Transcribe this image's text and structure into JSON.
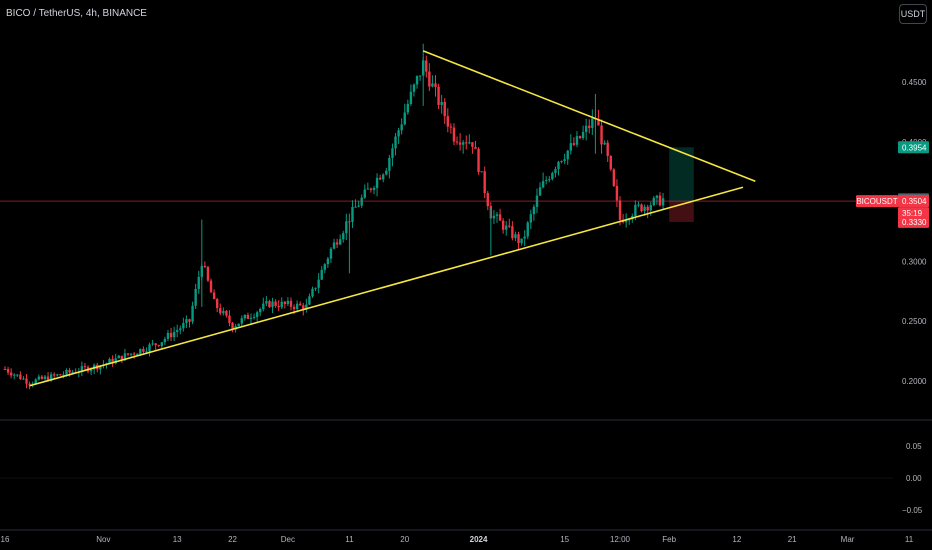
{
  "header": {
    "title": "BICO / TetherUS, 4h, BINANCE",
    "currency_button": "USDT"
  },
  "colors": {
    "background": "#000000",
    "up": "#089981",
    "down": "#f23645",
    "trendline": "#f5e642",
    "axis_text": "#b2b5be",
    "separator": "#2a2e39"
  },
  "chart_data": [
    {
      "type": "candlestick",
      "symbol": "BICOUSDT",
      "interval": "4h",
      "exchange": "BINANCE",
      "y_scale": "linear",
      "ylim": [
        0.177,
        0.5
      ],
      "y_ticks": [
        "0.4500",
        "0.4000",
        "0.3500",
        "0.3000",
        "0.2500",
        "0.2000"
      ],
      "x_ticks": [
        "16",
        "Nov",
        "13",
        "22",
        "Dec",
        "11",
        "20",
        "2024",
        "15",
        "12:00",
        "Feb",
        "12",
        "21",
        "Mar",
        "11"
      ],
      "x_ticks_bold": [
        "2024"
      ],
      "anchors": [
        {
          "label": "Oct 16",
          "value": 0.21
        },
        {
          "label": "Oct 20",
          "value": 0.199
        },
        {
          "label": "Nov 1",
          "value": 0.214
        },
        {
          "label": "Nov 10",
          "value": 0.232
        },
        {
          "label": "Nov 15",
          "value": 0.25
        },
        {
          "label": "Nov 17",
          "value": 0.3
        },
        {
          "label": "Nov 19",
          "value": 0.265
        },
        {
          "label": "Nov 22",
          "value": 0.246
        },
        {
          "label": "Nov 28",
          "value": 0.265
        },
        {
          "label": "Dec 4",
          "value": 0.262
        },
        {
          "label": "Dec 8",
          "value": 0.31
        },
        {
          "label": "Dec 12",
          "value": 0.345
        },
        {
          "label": "Dec 17",
          "value": 0.38
        },
        {
          "label": "Dec 20",
          "value": 0.425
        },
        {
          "label": "Dec 23",
          "value": 0.465
        },
        {
          "label": "Dec 25",
          "value": 0.44
        },
        {
          "label": "Dec 28",
          "value": 0.405
        },
        {
          "label": "Dec 31",
          "value": 0.4
        },
        {
          "label": "Jan 3",
          "value": 0.34
        },
        {
          "label": "Jan 6",
          "value": 0.325
        },
        {
          "label": "Jan 8",
          "value": 0.315
        },
        {
          "label": "Jan 11",
          "value": 0.36
        },
        {
          "label": "Jan 14",
          "value": 0.385
        },
        {
          "label": "Jan 17",
          "value": 0.4
        },
        {
          "label": "Jan 20",
          "value": 0.42
        },
        {
          "label": "Jan 22",
          "value": 0.385
        },
        {
          "label": "Jan 24",
          "value": 0.335
        },
        {
          "label": "Jan 27",
          "value": 0.345
        },
        {
          "label": "Jan 31",
          "value": 0.352
        }
      ],
      "trendlines": [
        {
          "name": "",
          "start": {
            "date": "Oct 20",
            "value": 0.196
          },
          "end": {
            "date": "Feb 13",
            "value": 0.362
          }
        },
        {
          "name": "",
          "start": {
            "date": "Dec 23",
            "value": 0.476
          },
          "end": {
            "date": "Feb 15",
            "value": 0.367
          }
        }
      ],
      "position": {
        "entry": 0.3504,
        "target": 0.3954,
        "stop": 0.333
      },
      "price_badges": [
        {
          "text": "0.3954",
          "value": 0.3954,
          "color": "#089981"
        },
        {
          "text": "0.3519",
          "value": 0.3519,
          "color": "#5d606b"
        },
        {
          "text": "BICOUSDT",
          "value": 0.3504,
          "color": "#f23645",
          "side": "left"
        },
        {
          "text": "0.3504",
          "value": 0.3504,
          "color": "#f23645"
        },
        {
          "text": "35:19",
          "value": 0.3504,
          "color": "#f23645",
          "offset": 1
        },
        {
          "text": "0.3330",
          "value": 0.333,
          "color": "#f23645"
        }
      ]
    },
    {
      "type": "line",
      "name": "",
      "ylim": [
        -0.07,
        0.07
      ],
      "y_ticks": [
        "0.05",
        "0.00",
        "−0.05"
      ],
      "values_note": ""
    }
  ]
}
